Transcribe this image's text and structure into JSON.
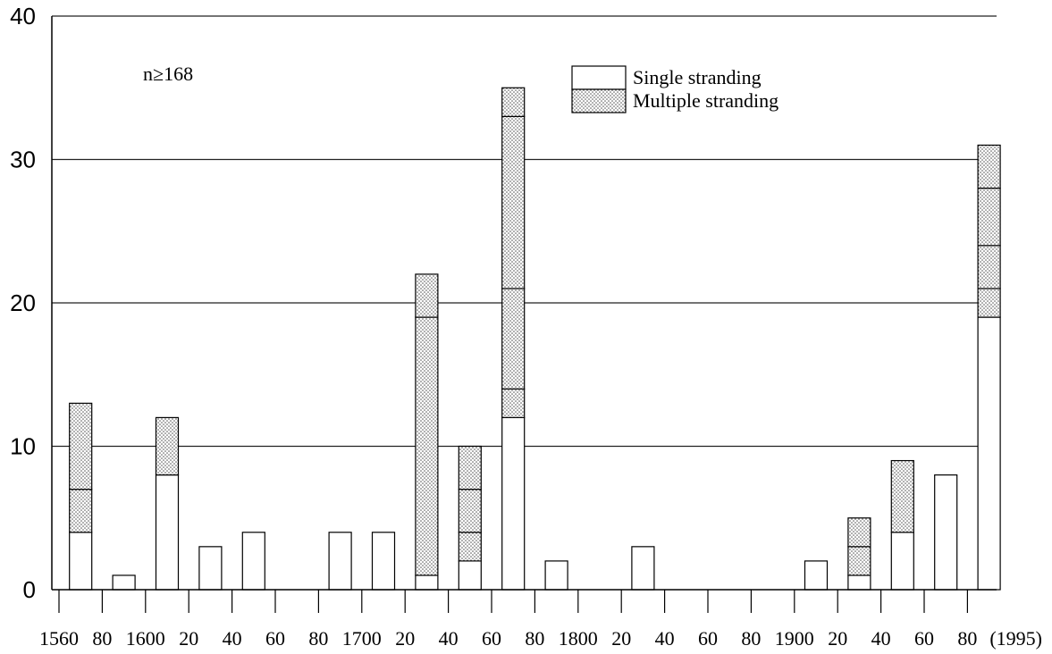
{
  "chart_data": {
    "type": "bar",
    "stacked": true,
    "annotation": "n≥168",
    "ylim": [
      0,
      40
    ],
    "yticks": [
      "0",
      "10",
      "20",
      "30",
      "40"
    ],
    "grid": "horizontal",
    "legend_position": "top-right",
    "x_tick_labels": [
      "1560",
      "80",
      "1600",
      "20",
      "40",
      "60",
      "80",
      "1700",
      "20",
      "40",
      "60",
      "80",
      "1800",
      "20",
      "40",
      "60",
      "80",
      "1900",
      "20",
      "40",
      "60",
      "80",
      "(1995)"
    ],
    "bin_size_years": 20,
    "colors": {
      "single": "#ffffff",
      "multiple": "#d6d6d6",
      "stroke": "#000000"
    },
    "legend": [
      {
        "key": "single",
        "label": "Single stranding"
      },
      {
        "key": "multiple",
        "label": "Multiple stranding"
      }
    ],
    "bars": [
      {
        "start": 1560,
        "end": 1580,
        "segments": [
          {
            "type": "single",
            "value": 4
          },
          {
            "type": "multiple",
            "value": 3
          },
          {
            "type": "multiple",
            "value": 6
          }
        ]
      },
      {
        "start": 1580,
        "end": 1600,
        "segments": [
          {
            "type": "single",
            "value": 1
          }
        ]
      },
      {
        "start": 1600,
        "end": 1620,
        "segments": [
          {
            "type": "single",
            "value": 8
          },
          {
            "type": "multiple",
            "value": 4
          }
        ]
      },
      {
        "start": 1620,
        "end": 1640,
        "segments": [
          {
            "type": "single",
            "value": 3
          }
        ]
      },
      {
        "start": 1640,
        "end": 1660,
        "segments": [
          {
            "type": "single",
            "value": 4
          }
        ]
      },
      {
        "start": 1680,
        "end": 1700,
        "segments": [
          {
            "type": "single",
            "value": 4
          }
        ]
      },
      {
        "start": 1700,
        "end": 1720,
        "segments": [
          {
            "type": "single",
            "value": 4
          }
        ]
      },
      {
        "start": 1720,
        "end": 1740,
        "segments": [
          {
            "type": "single",
            "value": 1
          },
          {
            "type": "multiple",
            "value": 18
          },
          {
            "type": "multiple",
            "value": 3
          }
        ]
      },
      {
        "start": 1740,
        "end": 1760,
        "segments": [
          {
            "type": "single",
            "value": 2
          },
          {
            "type": "multiple",
            "value": 2
          },
          {
            "type": "multiple",
            "value": 3
          },
          {
            "type": "multiple",
            "value": 3
          }
        ]
      },
      {
        "start": 1760,
        "end": 1780,
        "segments": [
          {
            "type": "single",
            "value": 12
          },
          {
            "type": "multiple",
            "value": 2
          },
          {
            "type": "multiple",
            "value": 7
          },
          {
            "type": "multiple",
            "value": 12
          },
          {
            "type": "multiple",
            "value": 2
          }
        ]
      },
      {
        "start": 1780,
        "end": 1800,
        "segments": [
          {
            "type": "single",
            "value": 2
          }
        ]
      },
      {
        "start": 1820,
        "end": 1840,
        "segments": [
          {
            "type": "single",
            "value": 3
          }
        ]
      },
      {
        "start": 1900,
        "end": 1920,
        "segments": [
          {
            "type": "single",
            "value": 2
          }
        ]
      },
      {
        "start": 1920,
        "end": 1940,
        "segments": [
          {
            "type": "single",
            "value": 1
          },
          {
            "type": "multiple",
            "value": 2
          },
          {
            "type": "multiple",
            "value": 2
          }
        ]
      },
      {
        "start": 1940,
        "end": 1960,
        "segments": [
          {
            "type": "single",
            "value": 4
          },
          {
            "type": "multiple",
            "value": 5
          }
        ]
      },
      {
        "start": 1960,
        "end": 1980,
        "segments": [
          {
            "type": "single",
            "value": 8
          }
        ]
      },
      {
        "start": 1980,
        "end": 1995,
        "segments": [
          {
            "type": "single",
            "value": 19
          },
          {
            "type": "multiple",
            "value": 2
          },
          {
            "type": "multiple",
            "value": 3
          },
          {
            "type": "multiple",
            "value": 4
          },
          {
            "type": "multiple",
            "value": 3
          }
        ]
      }
    ]
  }
}
